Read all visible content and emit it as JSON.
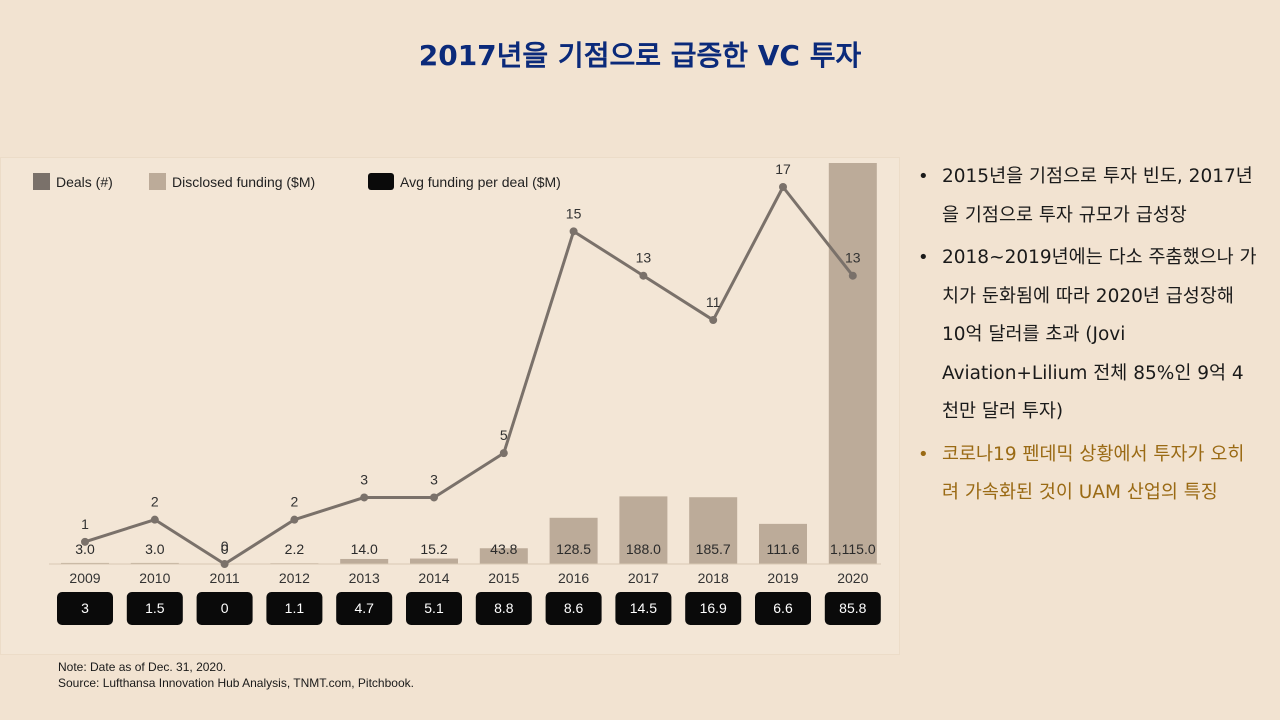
{
  "title": "2017년을 기점으로 급증한 VC 투자",
  "bullets": [
    "2015년을 기점으로 투자 빈도, 2017년 을 기점으로 투자 규모가 급성장",
    "2018~2019년에는 다소 주춤했으나 가치가 둔화됨에 따라 2020년 급성장해 10억 달러를 초과 (Jovi Aviation+Lilium 전체 85%인 9억 4천만 달러 투자)",
    "코로나19 펜데믹 상황에서 투자가 오히려 가속화된 것이 UAM 산업의 특징"
  ],
  "notes": {
    "line1": "Note: Date as of Dec. 31, 2020.",
    "line2": "Source: Lufthansa Innovation Hub Analysis, TNMT.com, Pitchbook."
  },
  "colors": {
    "title": "#0b2a7a",
    "deals": "#7a716a",
    "funding": "#bcab99",
    "avg": "#0a0a0a",
    "highlight": "#9a6a14"
  },
  "chart_data": {
    "type": "bar+line",
    "legend": [
      "Deals (#)",
      "Disclosed funding ($M)",
      "Avg funding per deal ($M)"
    ],
    "legend_position": "top-left",
    "categories": [
      "2009",
      "2010",
      "2011",
      "2012",
      "2013",
      "2014",
      "2015",
      "2016",
      "2017",
      "2018",
      "2019",
      "2020"
    ],
    "series": [
      {
        "name": "Deals (#)",
        "kind": "line",
        "values": [
          1,
          2,
          0,
          2,
          3,
          3,
          5,
          15,
          13,
          11,
          17,
          13
        ],
        "ylim": [
          0,
          17
        ]
      },
      {
        "name": "Disclosed funding ($M)",
        "kind": "bar",
        "values": [
          3.0,
          3.0,
          0,
          2.2,
          14.0,
          15.2,
          43.8,
          128.5,
          188.0,
          185.7,
          111.6,
          1115.0
        ],
        "labels": [
          "3.0",
          "3.0",
          "0",
          "2.2",
          "14.0",
          "15.2",
          "43.8",
          "128.5",
          "188.0",
          "185.7",
          "111.6",
          "1,115.0"
        ],
        "ylim": [
          0,
          1115
        ]
      },
      {
        "name": "Avg funding per deal ($M)",
        "kind": "boxes",
        "values": [
          3,
          1.5,
          0,
          1.1,
          4.7,
          5.1,
          8.8,
          8.6,
          14.5,
          16.9,
          6.6,
          85.8
        ],
        "labels": [
          "3",
          "1.5",
          "0",
          "1.1",
          "4.7",
          "5.1",
          "8.8",
          "8.6",
          "14.5",
          "16.9",
          "6.6",
          "85.8"
        ]
      }
    ],
    "grid": false
  }
}
